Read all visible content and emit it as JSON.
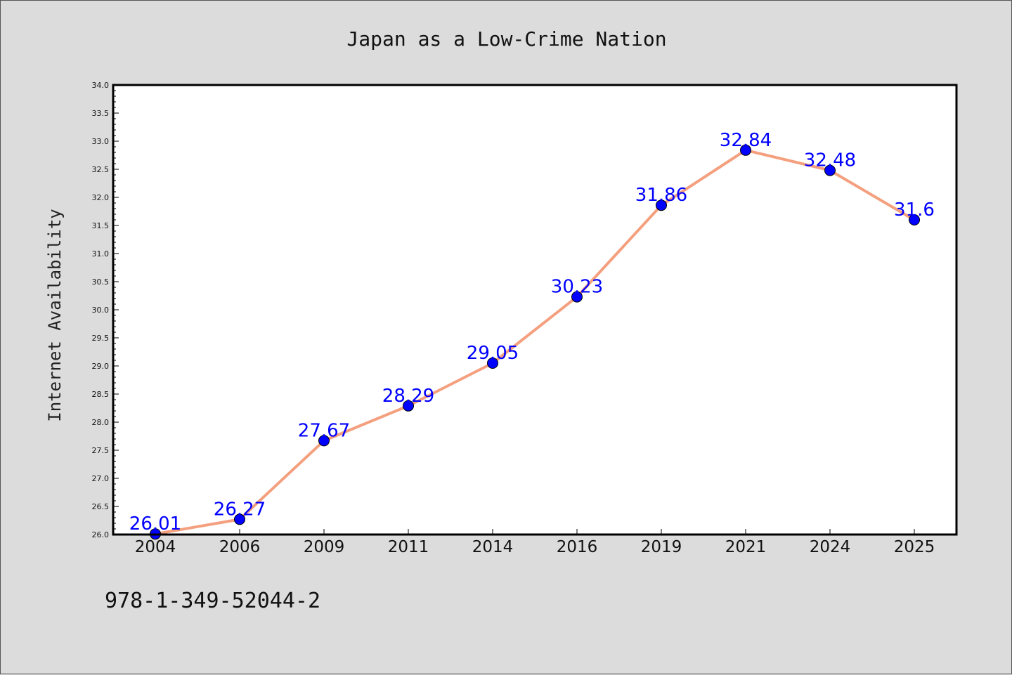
{
  "chart_data": {
    "type": "line",
    "title": "Japan as a Low-Crime Nation",
    "xlabel": "",
    "ylabel": "Internet Availability",
    "categories": [
      "2004",
      "2006",
      "2009",
      "2011",
      "2014",
      "2016",
      "2019",
      "2021",
      "2024",
      "2025"
    ],
    "series": [
      {
        "values": [
          26.01,
          26.27,
          27.67,
          28.29,
          29.05,
          30.23,
          31.86,
          32.84,
          32.48,
          31.6
        ],
        "data_labels": [
          "26.01",
          "26.27",
          "27.67",
          "28.29",
          "29.05",
          "30.23",
          "31.86",
          "32.84",
          "32.48",
          "31.6"
        ]
      }
    ],
    "ylim": [
      26.0,
      34.0
    ],
    "yticks": [
      "26.0",
      "26.5",
      "27.0",
      "27.5",
      "28.0",
      "28.5",
      "29.0",
      "29.5",
      "30.0",
      "30.5",
      "31.0",
      "31.5",
      "32.0",
      "32.5",
      "33.0",
      "33.5",
      "34.0"
    ],
    "grid": false,
    "legend": "none"
  },
  "footer": {
    "isbn": "978-1-349-52044-2"
  },
  "colors": {
    "background": "#dcdcdc",
    "plot_background": "#ffffff",
    "line": "#f4a07f",
    "marker": "#0000ff",
    "data_label": "#0000ff"
  }
}
